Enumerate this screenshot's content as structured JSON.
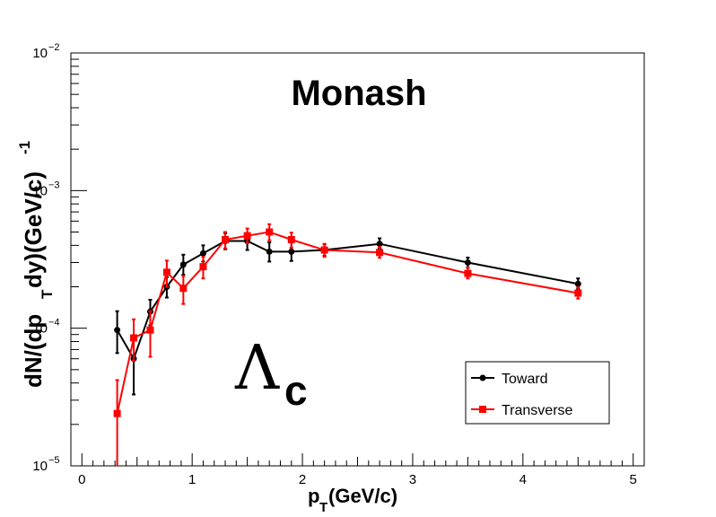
{
  "chart_data": {
    "type": "line",
    "title": "Monash",
    "annotation": {
      "main": "Λ",
      "subscript": "c"
    },
    "xlabel": {
      "main": "p",
      "sub": "T",
      "rest": "(GeV/c)"
    },
    "ylabel": {
      "p1": "dN/(dp",
      "sub": "T",
      "p2": "dy)(GeV/c)",
      "sup": "-1"
    },
    "xlim": [
      -0.1,
      5.1
    ],
    "ylim": [
      1e-05,
      0.01
    ],
    "yscale": "log",
    "x_ticks": [
      {
        "value": 0,
        "label": "0"
      },
      {
        "value": 1,
        "label": "1"
      },
      {
        "value": 2,
        "label": "2"
      },
      {
        "value": 3,
        "label": "3"
      },
      {
        "value": 4,
        "label": "4"
      },
      {
        "value": 5,
        "label": "5"
      }
    ],
    "y_ticks": [
      {
        "value": 1e-05,
        "base": "10",
        "exp": "−5"
      },
      {
        "value": 0.0001,
        "base": "10",
        "exp": "−4"
      },
      {
        "value": 0.001,
        "base": "10",
        "exp": "−3"
      },
      {
        "value": 0.01,
        "base": "10",
        "exp": "−2"
      }
    ],
    "grid": false,
    "legend_position": "bottom-right",
    "series": [
      {
        "name": "Toward",
        "color": "#000000",
        "marker": "circle",
        "x": [
          0.32,
          0.47,
          0.62,
          0.77,
          0.92,
          1.1,
          1.3,
          1.5,
          1.7,
          1.9,
          2.2,
          2.7,
          3.5,
          4.5
        ],
        "y": [
          9.7e-05,
          6e-05,
          0.000132,
          0.0002,
          0.00029,
          0.00035,
          0.00043,
          0.00043,
          0.00036,
          0.00036,
          0.00037,
          0.00041,
          0.0003,
          0.00021
        ],
        "err_low": [
          6.6e-05,
          3.3e-05,
          0.000105,
          0.000167,
          0.000245,
          0.000305,
          0.000375,
          0.00037,
          0.000305,
          0.000308,
          0.000335,
          0.00038,
          0.000275,
          0.000193
        ],
        "err_high": [
          0.000133,
          8.6e-05,
          0.000161,
          0.000235,
          0.000342,
          0.0004,
          0.00049,
          0.000488,
          0.00042,
          0.00042,
          0.000408,
          0.00045,
          0.000326,
          0.00023
        ]
      },
      {
        "name": "Transverse",
        "color": "#ff0000",
        "marker": "square",
        "x": [
          0.32,
          0.47,
          0.62,
          0.77,
          0.92,
          1.1,
          1.3,
          1.5,
          1.7,
          1.9,
          2.2,
          2.7,
          3.5,
          4.5
        ],
        "y": [
          2.4e-05,
          8.5e-05,
          9.7e-05,
          0.000255,
          0.000195,
          0.00028,
          0.00044,
          0.00047,
          0.0005,
          0.00044,
          0.00037,
          0.000355,
          0.00025,
          0.00018
        ],
        "err_low": [
          1e-05,
          5.8e-05,
          6.2e-05,
          0.0002,
          0.00015,
          0.00023,
          0.00038,
          0.000415,
          0.000435,
          0.000385,
          0.00033,
          0.000325,
          0.00023,
          0.000164
        ],
        "err_high": [
          4.2e-05,
          0.000116,
          0.000133,
          0.00031,
          0.00024,
          0.00033,
          0.0005,
          0.00053,
          0.00057,
          0.000495,
          0.00041,
          0.00039,
          0.000275,
          0.000198
        ]
      }
    ]
  }
}
